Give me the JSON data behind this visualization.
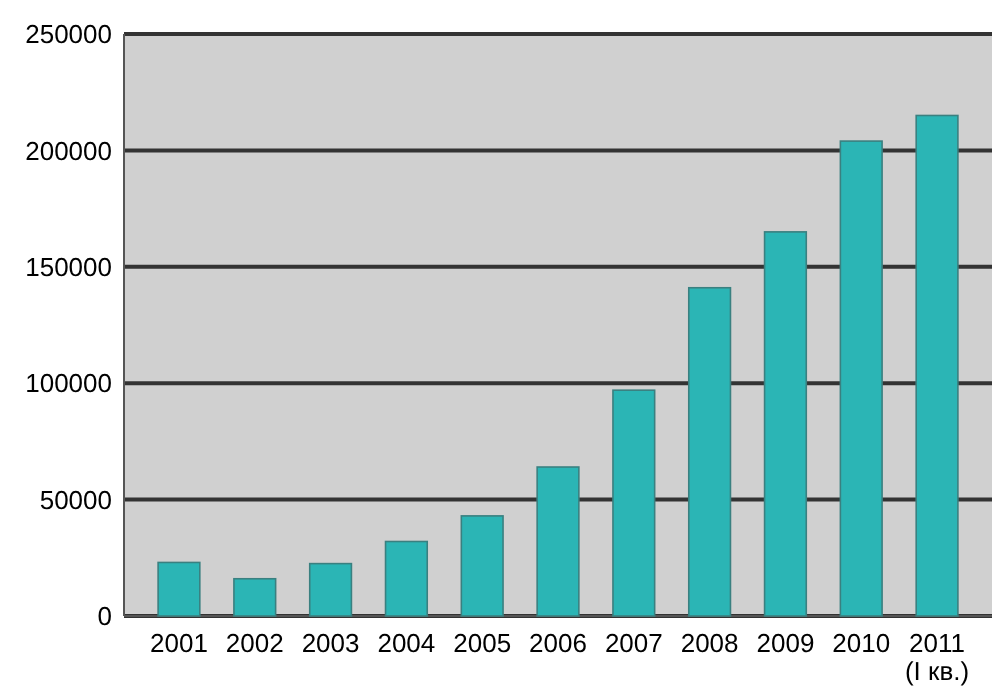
{
  "chart_data": {
    "type": "bar",
    "categories": [
      "2001",
      "2002",
      "2003",
      "2004",
      "2005",
      "2006",
      "2007",
      "2008",
      "2009",
      "2010",
      "2011\n(I кв.)"
    ],
    "values": [
      23000,
      16000,
      22500,
      32000,
      43000,
      64000,
      97000,
      141000,
      165000,
      204000,
      215000
    ],
    "color": "#2bb5b5",
    "ylim": [
      0,
      250000
    ],
    "yticks": [
      0,
      50000,
      100000,
      150000,
      200000,
      250000
    ],
    "grid": "y"
  }
}
